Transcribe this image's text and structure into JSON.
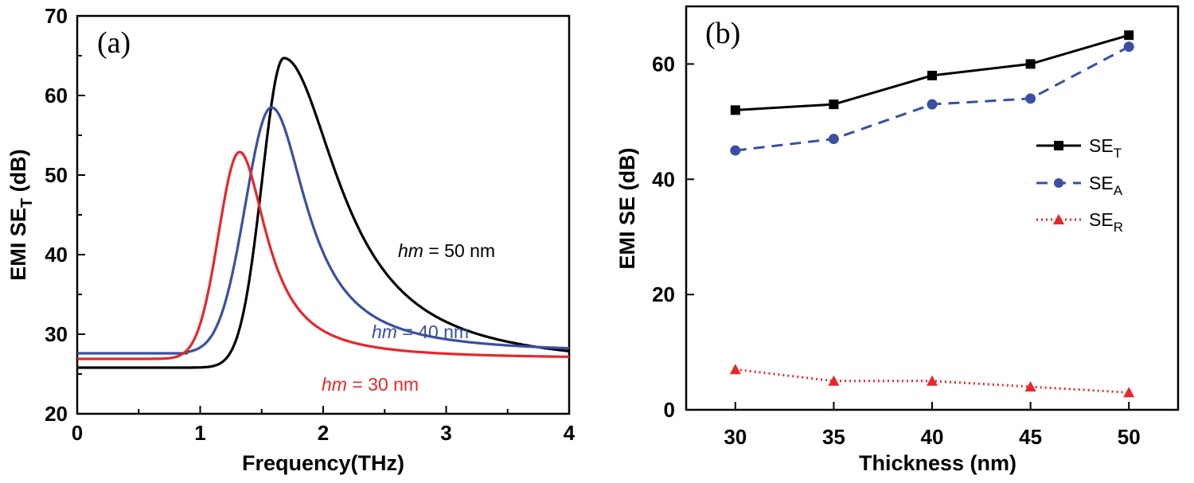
{
  "chart_data": [
    {
      "type": "line",
      "panel_label": "(a)",
      "xlabel": "Frequency(THz)",
      "ylabel_main": "EMI SE",
      "ylabel_sub": "T",
      "ylabel_unit": " (dB)",
      "xlim": [
        0,
        4
      ],
      "ylim": [
        20,
        70
      ],
      "xticks": [
        0,
        1,
        2,
        3,
        4
      ],
      "xtick_labels": [
        "0",
        "1",
        "2",
        "3",
        "4"
      ],
      "yticks": [
        20,
        30,
        40,
        50,
        60,
        70
      ],
      "ytick_labels": [
        "20",
        "30",
        "40",
        "50",
        "60",
        "70"
      ],
      "series": [
        {
          "name": "hm = 50 nm",
          "color": "#000000",
          "base": 25.8,
          "peak": 64.7,
          "center": 1.68,
          "wl": 0.25,
          "wr": 0.55,
          "cutoff": 0.0
        },
        {
          "name": "hm = 40 nm",
          "color": "#3a4fa3",
          "base": 27.6,
          "peak": 58.5,
          "center": 1.58,
          "wl": 0.3,
          "wr": 0.35,
          "cutoff": 0.9
        },
        {
          "name": "hm = 30 nm",
          "color": "#e8262b",
          "base": 26.9,
          "peak": 52.9,
          "center": 1.32,
          "wl": 0.24,
          "wr": 0.27,
          "cutoff": 0.0
        }
      ],
      "annotations": [
        {
          "italic": "hm",
          "rest": " = 50 nm",
          "color": "#000000"
        },
        {
          "italic": "hm",
          "rest": " = 40 nm",
          "color": "#3a4fa3"
        },
        {
          "italic": "hm",
          "rest": " = 30 nm",
          "color": "#e8262b"
        }
      ]
    },
    {
      "type": "line",
      "panel_label": "(b)",
      "xlabel": "Thickness (nm)",
      "ylabel": "EMI SE (dB)",
      "xlim": [
        27.5,
        52.5
      ],
      "ylim": [
        0,
        70
      ],
      "xticks": [
        30,
        35,
        40,
        45,
        50
      ],
      "xtick_labels": [
        "30",
        "35",
        "40",
        "45",
        "50"
      ],
      "yticks": [
        0,
        20,
        40,
        60
      ],
      "ytick_labels": [
        "0",
        "20",
        "40",
        "60"
      ],
      "x": [
        30,
        35,
        40,
        45,
        50
      ],
      "series": [
        {
          "name": "SE",
          "sub": "T",
          "color": "#000000",
          "marker": "square",
          "dash": "",
          "values": [
            52,
            53,
            58,
            60,
            65
          ]
        },
        {
          "name": "SE",
          "sub": "A",
          "color": "#3a4fa3",
          "marker": "circle",
          "dash": "14 9",
          "values": [
            45,
            47,
            53,
            54,
            63
          ]
        },
        {
          "name": "SE",
          "sub": "R",
          "color": "#e8262b",
          "marker": "triangle",
          "dash": "2 4",
          "values": [
            7,
            5,
            5,
            4,
            3
          ]
        }
      ],
      "legend_position": "right"
    }
  ]
}
